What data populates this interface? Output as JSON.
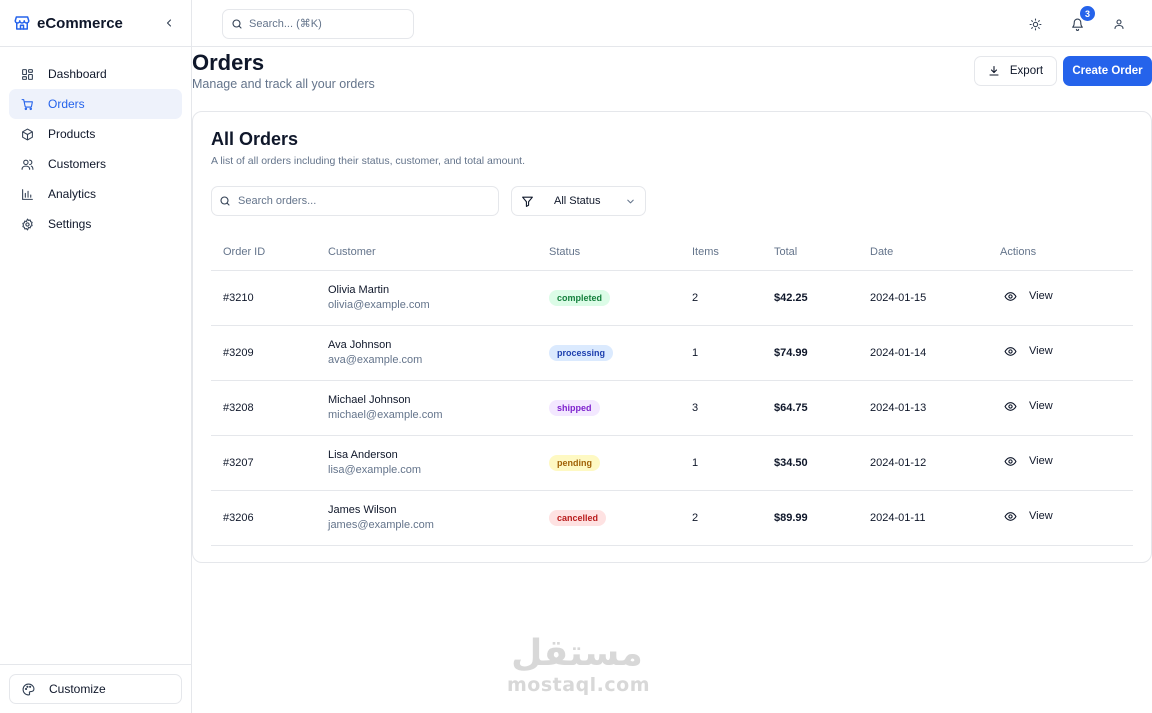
{
  "brand": {
    "name": "eCommerce"
  },
  "sidebar": {
    "items": [
      {
        "label": "Dashboard",
        "icon": "dashboard-icon"
      },
      {
        "label": "Orders",
        "icon": "cart-icon",
        "active": true
      },
      {
        "label": "Products",
        "icon": "package-icon"
      },
      {
        "label": "Customers",
        "icon": "users-icon"
      },
      {
        "label": "Analytics",
        "icon": "bar-chart-icon"
      },
      {
        "label": "Settings",
        "icon": "gear-icon"
      }
    ],
    "footer": {
      "label": "Customize",
      "icon": "palette-icon"
    }
  },
  "topbar": {
    "search_placeholder": "Search... (⌘K)",
    "notification_count": "3"
  },
  "page": {
    "title": "Orders",
    "subtitle": "Manage and track all your orders",
    "export_label": "Export",
    "create_label": "Create Order"
  },
  "card": {
    "title": "All Orders",
    "description": "A list of all orders including their status, customer, and total amount.",
    "search_placeholder": "Search orders...",
    "status_filter": "All Status"
  },
  "table": {
    "columns": [
      "Order ID",
      "Customer",
      "Status",
      "Items",
      "Total",
      "Date",
      "Actions"
    ],
    "rows": [
      {
        "id": "#3210",
        "name": "Olivia Martin",
        "email": "olivia@example.com",
        "status": "completed",
        "items": "2",
        "total": "$42.25",
        "date": "2024-01-15",
        "action": "View"
      },
      {
        "id": "#3209",
        "name": "Ava Johnson",
        "email": "ava@example.com",
        "status": "processing",
        "items": "1",
        "total": "$74.99",
        "date": "2024-01-14",
        "action": "View"
      },
      {
        "id": "#3208",
        "name": "Michael Johnson",
        "email": "michael@example.com",
        "status": "shipped",
        "items": "3",
        "total": "$64.75",
        "date": "2024-01-13",
        "action": "View"
      },
      {
        "id": "#3207",
        "name": "Lisa Anderson",
        "email": "lisa@example.com",
        "status": "pending",
        "items": "1",
        "total": "$34.50",
        "date": "2024-01-12",
        "action": "View"
      },
      {
        "id": "#3206",
        "name": "James Wilson",
        "email": "james@example.com",
        "status": "cancelled",
        "items": "2",
        "total": "$89.99",
        "date": "2024-01-11",
        "action": "View"
      }
    ]
  },
  "watermark": {
    "arabic": "مستقل",
    "latin": "mostaql.com"
  },
  "colors": {
    "accent": "#2563eb",
    "border": "#e5e7eb",
    "muted": "#64748b"
  }
}
